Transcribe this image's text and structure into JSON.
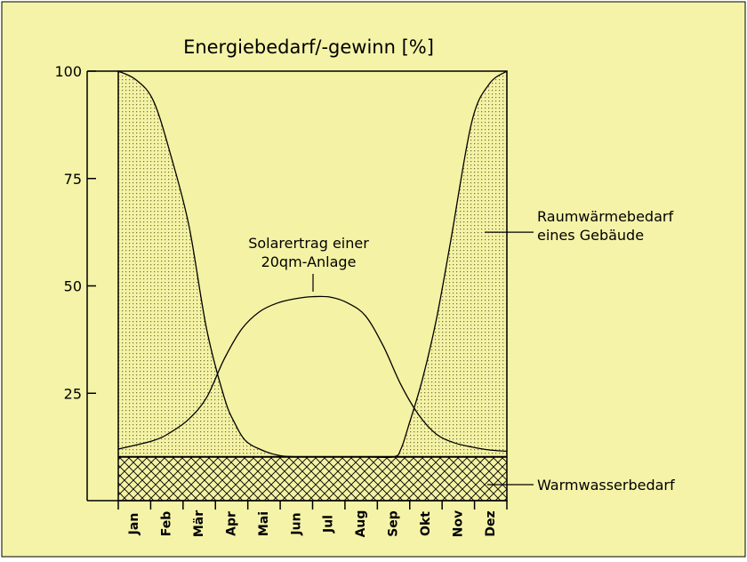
{
  "chart_data": {
    "type": "area",
    "title": "Energiebedarf/-gewinn [%]",
    "xlabel": "",
    "ylabel": "",
    "ylim": [
      0,
      100
    ],
    "yticks": [
      25,
      50,
      75,
      100
    ],
    "grid": false,
    "categories": [
      "Jan",
      "Feb",
      "Mär",
      "Apr",
      "Mai",
      "Jun",
      "Jul",
      "Aug",
      "Sep",
      "Okt",
      "Nov",
      "Dez"
    ],
    "series": [
      {
        "name": "Raumwärmebedarf eines Gebäude",
        "label_lines": [
          "Raumwärmebedarf",
          "eines Gebäude"
        ],
        "fill": "dotted",
        "x": [
          0,
          0.5,
          1,
          1.5,
          2,
          2.5,
          3,
          3.3,
          3.6,
          4,
          4.5,
          5,
          6,
          7,
          7.8,
          8,
          8.2,
          8.6,
          9,
          9.4,
          10,
          10.5,
          11
        ],
        "values": [
          100,
          98,
          93,
          80,
          64,
          40,
          24,
          18,
          14,
          12,
          10.6,
          10.2,
          10.2,
          10.2,
          10.2,
          12,
          17,
          28,
          42,
          60,
          88,
          97,
          100
        ]
      },
      {
        "name": "Solarertrag einer 20qm-Anlage",
        "label_lines": [
          "Solarertrag einer",
          "20qm-Anlage"
        ],
        "x": [
          0,
          1,
          1.5,
          2,
          2.5,
          3,
          3.5,
          4,
          4.5,
          5,
          5.5,
          6,
          6.5,
          7,
          7.5,
          8,
          8.5,
          9,
          9.5,
          10,
          10.5,
          11
        ],
        "values": [
          12,
          14,
          16,
          19,
          24,
          33,
          40,
          44,
          46,
          47,
          47.5,
          47.4,
          46,
          43,
          36,
          27,
          20,
          15.5,
          13.5,
          12.5,
          11.8,
          11.5
        ]
      },
      {
        "name": "Warmwasserbedarf",
        "label_lines": [
          "Warmwasserbedarf"
        ],
        "fill": "crosshatch",
        "x": [
          0,
          11
        ],
        "values": [
          10.2,
          10.2
        ]
      }
    ]
  },
  "colors": {
    "page": "#f5f3a8",
    "plot": "#f4f2a4",
    "stipple": "#6e6e40",
    "ink": "#000000"
  }
}
